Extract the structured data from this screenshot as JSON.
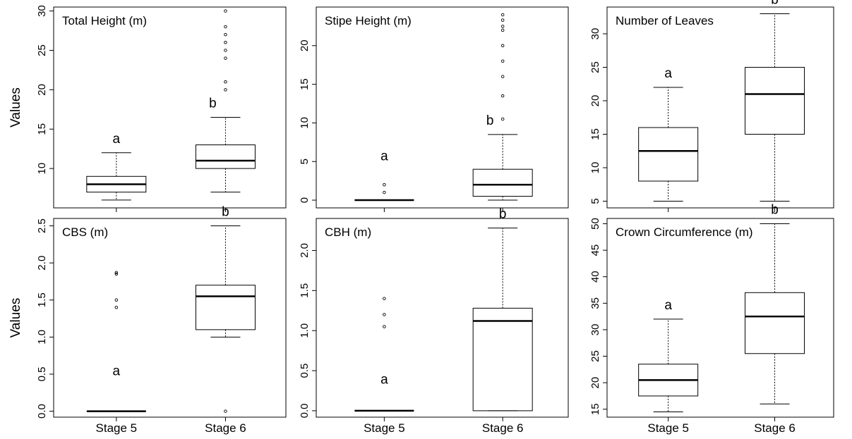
{
  "chart_data": [
    {
      "type": "boxplot",
      "title": "Total Height (m)",
      "ylabel": "Values",
      "categories": [
        "Stage 5",
        "Stage 6"
      ],
      "yticks": [
        10,
        15,
        20,
        25,
        30
      ],
      "ylim": [
        5,
        30.5
      ],
      "boxes": [
        {
          "category": "Stage 5",
          "min": 6,
          "q1": 7,
          "median": 8,
          "q3": 9,
          "max": 12,
          "outliers": [],
          "letter": "a"
        },
        {
          "category": "Stage 6",
          "min": 7,
          "q1": 10,
          "median": 11,
          "q3": 13,
          "max": 16.5,
          "outliers": [
            20,
            21,
            24,
            25,
            26,
            27,
            28,
            30
          ],
          "letter": "b"
        }
      ]
    },
    {
      "type": "boxplot",
      "title": "Stipe Height (m)",
      "ylabel": "",
      "categories": [
        "Stage 5",
        "Stage 6"
      ],
      "yticks": [
        0,
        5,
        10,
        15,
        20
      ],
      "ylim": [
        -1,
        25
      ],
      "boxes": [
        {
          "category": "Stage 5",
          "min": 0,
          "q1": 0,
          "median": 0,
          "q3": 0,
          "max": 0,
          "outliers": [
            1,
            2
          ],
          "letter": "a"
        },
        {
          "category": "Stage 6",
          "min": 0,
          "q1": 0.5,
          "median": 2,
          "q3": 4,
          "max": 8.5,
          "outliers": [
            10.5,
            13.5,
            16,
            18,
            20,
            22,
            22.5,
            23.3,
            24
          ],
          "letter": "b"
        }
      ]
    },
    {
      "type": "boxplot",
      "title": "Number of Leaves",
      "ylabel": "",
      "categories": [
        "Stage 5",
        "Stage 6"
      ],
      "yticks": [
        5,
        10,
        15,
        20,
        25,
        30
      ],
      "ylim": [
        4,
        34
      ],
      "boxes": [
        {
          "category": "Stage 5",
          "min": 5,
          "q1": 8,
          "median": 12.5,
          "q3": 16,
          "max": 22,
          "outliers": [],
          "letter": "a"
        },
        {
          "category": "Stage 6",
          "min": 5,
          "q1": 15,
          "median": 21,
          "q3": 25,
          "max": 33,
          "outliers": [],
          "letter": "b"
        }
      ]
    },
    {
      "type": "boxplot",
      "title": "CBS (m)",
      "ylabel": "Values",
      "categories": [
        "Stage 5",
        "Stage 6"
      ],
      "yticks": [
        0.0,
        0.5,
        1.0,
        1.5,
        2.0,
        2.5
      ],
      "ytick_labels": [
        "0.0",
        "0.5",
        "1.0",
        "1.5",
        "2.0",
        "2.5"
      ],
      "ylim": [
        -0.08,
        2.6
      ],
      "boxes": [
        {
          "category": "Stage 5",
          "min": 0,
          "q1": 0,
          "median": 0,
          "q3": 0,
          "max": 0,
          "outliers": [
            1.4,
            1.5,
            1.85,
            1.87
          ],
          "letter": "a"
        },
        {
          "category": "Stage 6",
          "min": 1.0,
          "q1": 1.1,
          "median": 1.55,
          "q3": 1.7,
          "max": 2.5,
          "outliers": [
            0
          ],
          "letter": "b"
        }
      ]
    },
    {
      "type": "boxplot",
      "title": "CBH (m)",
      "ylabel": "",
      "categories": [
        "Stage 5",
        "Stage 6"
      ],
      "yticks": [
        0.0,
        0.5,
        1.0,
        1.5,
        2.0
      ],
      "ytick_labels": [
        "0.0",
        "0.5",
        "1.0",
        "1.5",
        "2.0"
      ],
      "ylim": [
        -0.08,
        2.4
      ],
      "boxes": [
        {
          "category": "Stage 5",
          "min": 0,
          "q1": 0,
          "median": 0,
          "q3": 0,
          "max": 0,
          "outliers": [
            1.05,
            1.2,
            1.4
          ],
          "letter": "a"
        },
        {
          "category": "Stage 6",
          "min": 0,
          "q1": 0,
          "median": 1.12,
          "q3": 1.28,
          "max": 2.28,
          "outliers": [],
          "letter": "b"
        }
      ]
    },
    {
      "type": "boxplot",
      "title": "Crown Circumference (m)",
      "ylabel": "",
      "categories": [
        "Stage 5",
        "Stage 6"
      ],
      "yticks": [
        15,
        20,
        25,
        30,
        35,
        40,
        45,
        50
      ],
      "ylim": [
        13.5,
        51
      ],
      "boxes": [
        {
          "category": "Stage 5",
          "min": 14.5,
          "q1": 17.5,
          "median": 20.5,
          "q3": 23.5,
          "max": 32,
          "outliers": [],
          "letter": "a"
        },
        {
          "category": "Stage 6",
          "min": 16,
          "q1": 25.5,
          "median": 32.5,
          "q3": 37,
          "max": 50,
          "outliers": [],
          "letter": "b"
        }
      ]
    }
  ]
}
